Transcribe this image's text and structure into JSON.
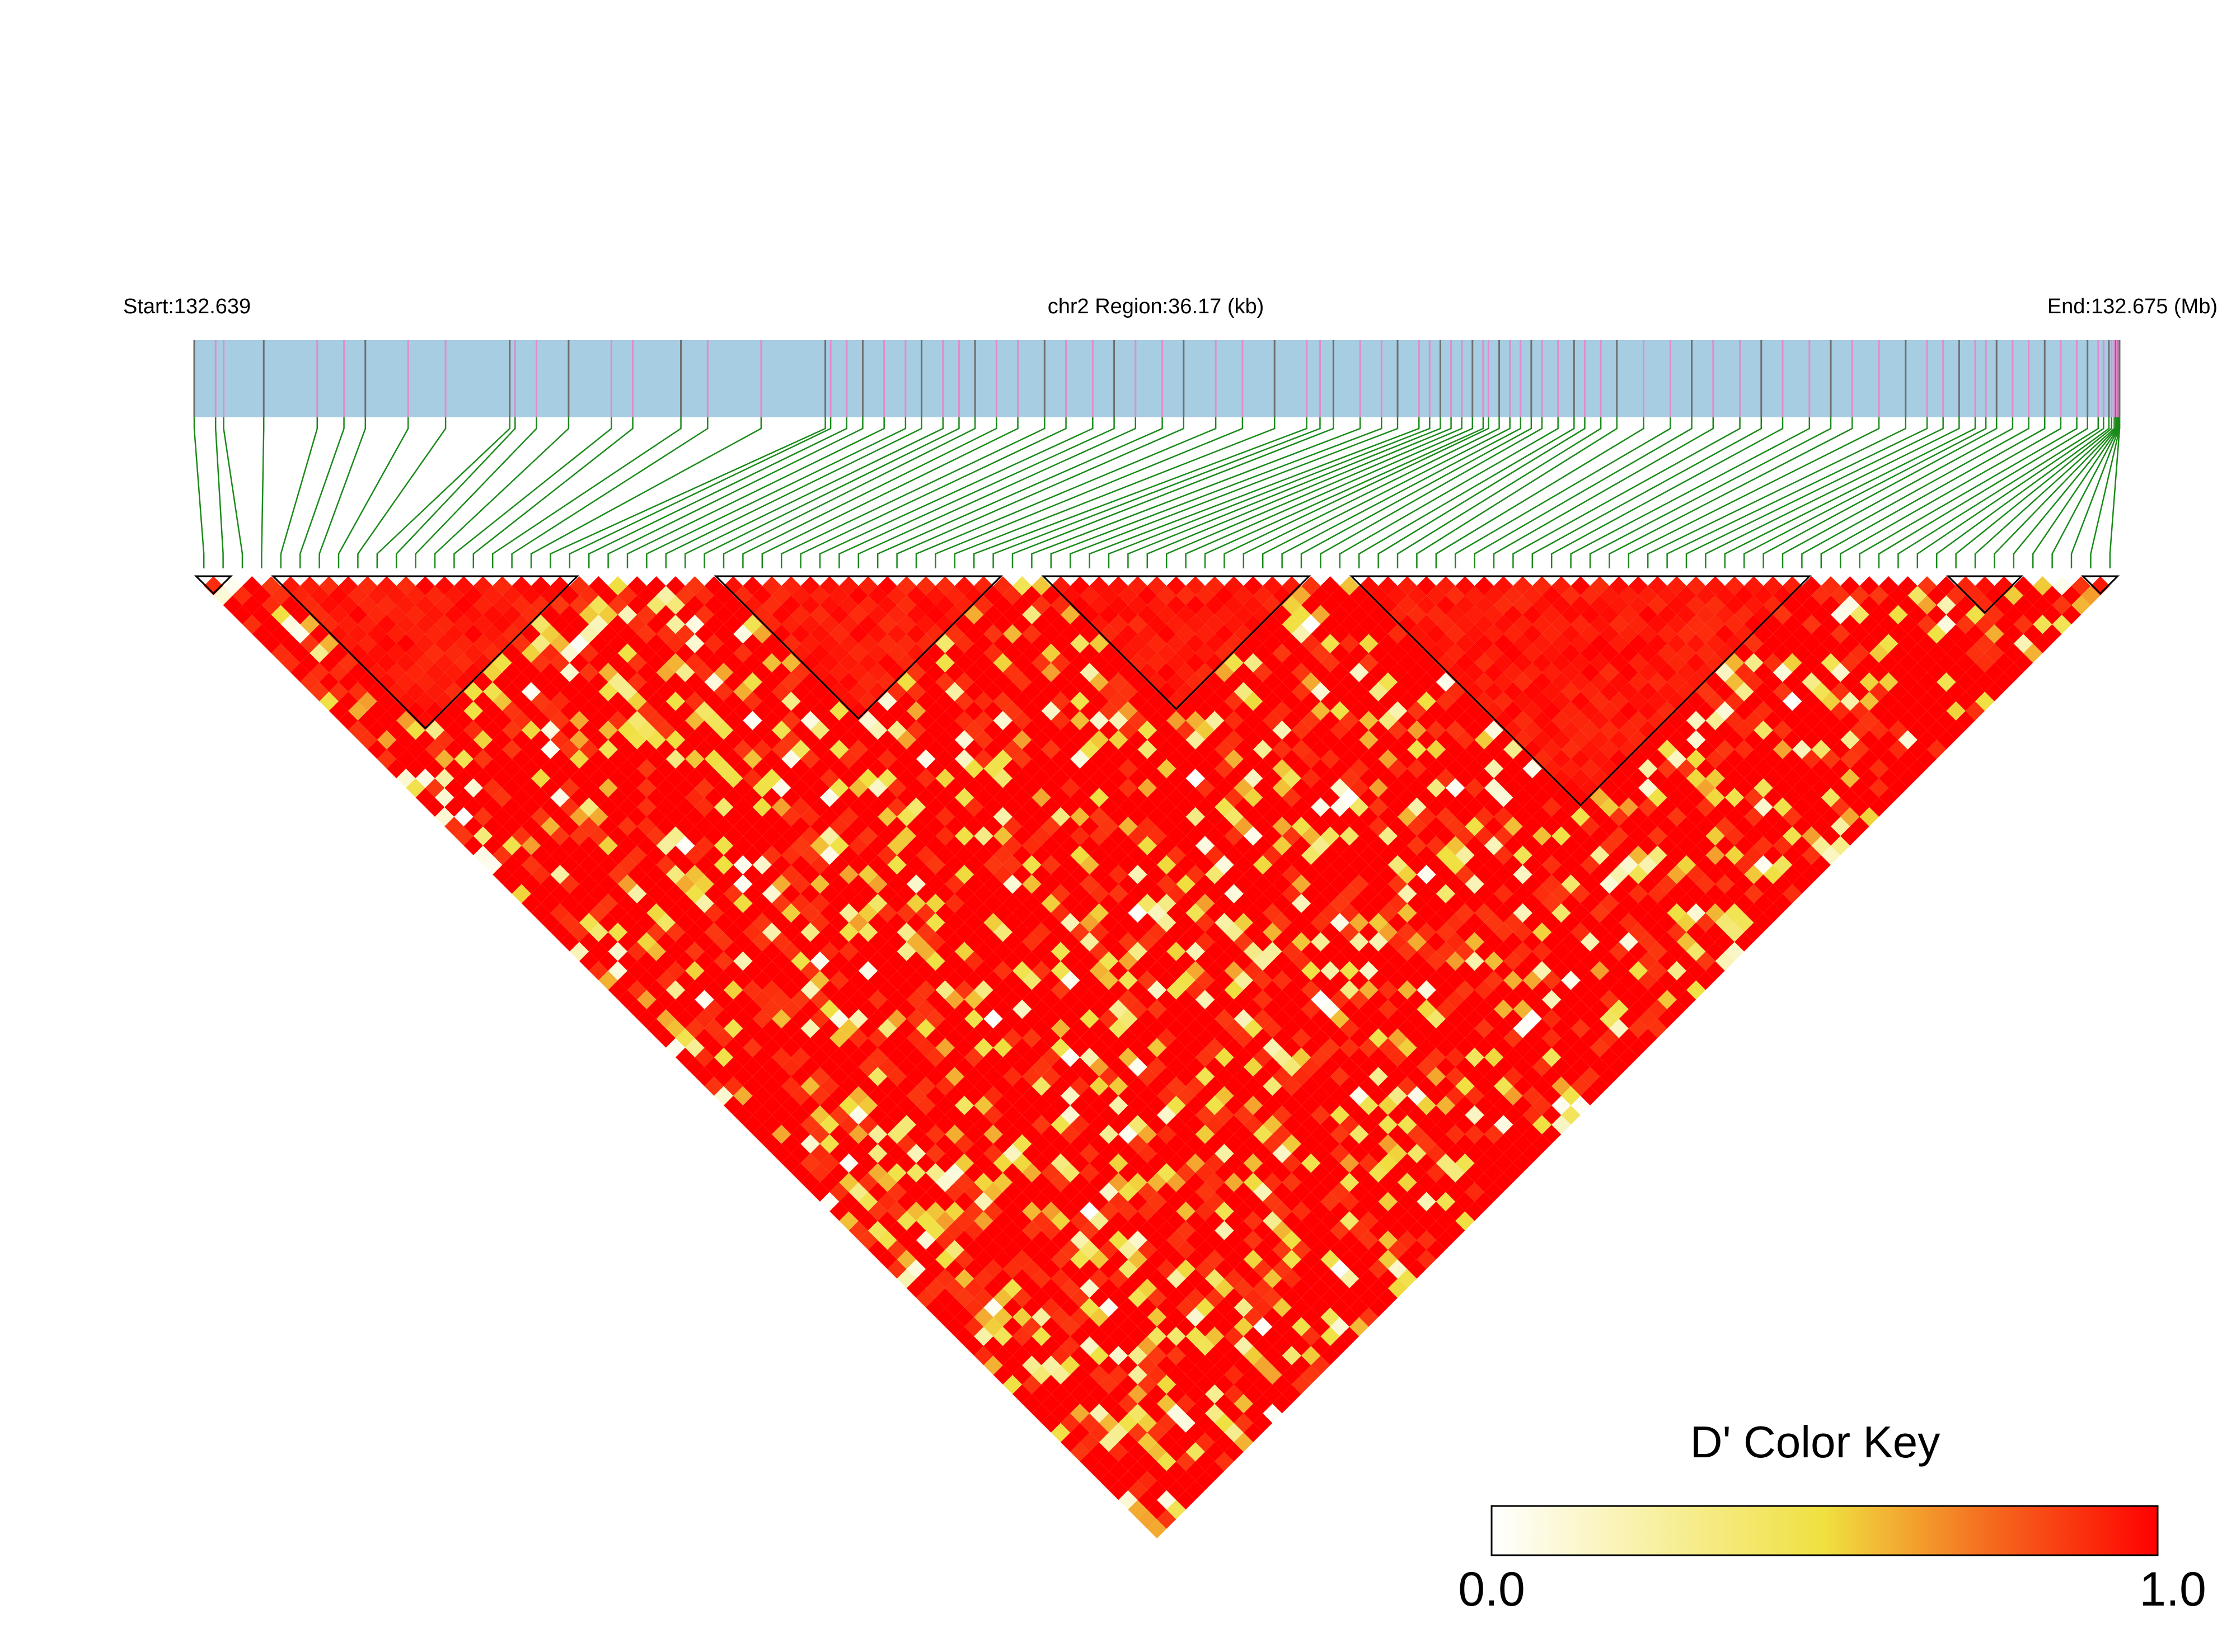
{
  "header": {
    "start_label": "Start:132.639",
    "region_label": "chr2 Region:36.17 (kb)",
    "end_label": "End:132.675 (Mb)"
  },
  "legend": {
    "title": "D' Color Key",
    "min_label": "0.0",
    "max_label": "1.0"
  },
  "colors": {
    "track": "#a6cde1",
    "connector": "#1a8a1a",
    "snp_tick_gray": "#6f6f6f",
    "snp_tick_pink": "#e48ad0",
    "high": "#ff0000",
    "mid": "#f0e040",
    "low": "#ffffff"
  },
  "chart_data": {
    "type": "heatmap",
    "title": "",
    "variable": "D'",
    "color_scale": {
      "min": 0.0,
      "max": 1.0,
      "colors": [
        "#ffffff",
        "#f0e040",
        "#ff0000"
      ]
    },
    "region": {
      "chromosome": "chr2",
      "start_mb": 132.639,
      "end_mb": 132.675,
      "length_kb": 36.17
    },
    "snp_count": 100,
    "snp_positions_mb": [
      132.639,
      132.6394,
      132.63955,
      132.6403,
      132.6413,
      132.6418,
      132.6422,
      132.643,
      132.6437,
      132.6449,
      132.645,
      132.6454,
      132.646,
      132.6468,
      132.6472,
      132.6481,
      132.6486,
      132.6496,
      132.6508,
      132.6509,
      132.6512,
      132.6515,
      132.6519,
      132.6523,
      132.6526,
      132.653,
      132.6533,
      132.6536,
      132.654,
      132.6544,
      132.6549,
      132.6553,
      132.6558,
      132.6562,
      132.6566,
      132.6571,
      132.6575,
      132.6581,
      132.6586,
      132.6592,
      132.6598,
      132.66005,
      132.6603,
      132.6608,
      132.6612,
      132.6615,
      132.6619,
      132.6621,
      132.6623,
      132.6625,
      132.6627,
      132.6629,
      132.6631,
      132.6632,
      132.6634,
      132.6636,
      132.6638,
      132.664,
      132.6642,
      132.6645,
      132.6648,
      132.665,
      132.6653,
      132.6656,
      132.6661,
      132.6666,
      132.667,
      132.6674,
      132.6679,
      132.6683,
      132.6687,
      132.6692,
      132.6696,
      132.67,
      132.6705,
      132.671,
      132.6714,
      132.6717,
      132.672,
      132.6723,
      132.6725,
      132.6727,
      132.673,
      132.6733,
      132.6736,
      132.6739,
      132.6742,
      132.6744,
      132.6746,
      132.6747,
      132.6748,
      132.67485,
      132.6749,
      132.67493,
      132.67495,
      132.67497,
      132.67498,
      132.67499,
      132.675,
      132.675
    ],
    "ld_blocks": [
      {
        "first_snp": 0,
        "last_snp": 1
      },
      {
        "first_snp": 4,
        "last_snp": 19
      },
      {
        "first_snp": 27,
        "last_snp": 41
      },
      {
        "first_snp": 44,
        "last_snp": 57
      },
      {
        "first_snp": 60,
        "last_snp": 83
      },
      {
        "first_snp": 91,
        "last_snp": 94
      },
      {
        "first_snp": 98,
        "last_snp": 99
      }
    ],
    "d_prime_note": "Pairwise D' values are predominantly high (near 1.0) with scattered lower values; rendered procedurally.",
    "d_prime_seed": 7
  }
}
